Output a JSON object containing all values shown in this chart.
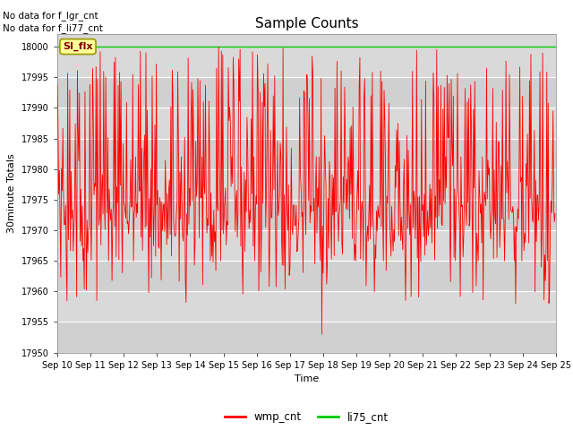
{
  "title": "Sample Counts",
  "xlabel": "Time",
  "ylabel": "30minute Totals",
  "ylim": [
    17950,
    18002
  ],
  "xlim": [
    0,
    720
  ],
  "x_tick_labels": [
    "Sep 10",
    "Sep 11",
    "Sep 12",
    "Sep 13",
    "Sep 14",
    "Sep 15",
    "Sep 16",
    "Sep 17",
    "Sep 18",
    "Sep 19",
    "Sep 20",
    "Sep 21",
    "Sep 22",
    "Sep 23",
    "Sep 24",
    "Sep 25"
  ],
  "x_tick_positions": [
    0,
    48,
    96,
    144,
    192,
    240,
    288,
    336,
    384,
    432,
    480,
    528,
    576,
    624,
    672,
    720
  ],
  "y_ticks": [
    17950,
    17955,
    17960,
    17965,
    17970,
    17975,
    17980,
    17985,
    17990,
    17995,
    18000
  ],
  "annotation_text1": "No data for f_lgr_cnt",
  "annotation_text2": "No data for f_li77_cnt",
  "si_flx_label": "SI_flx",
  "wmp_color": "#ff0000",
  "li75_color": "#00cc00",
  "bg_color": "#d9d9d9",
  "bg_color2": "#e8e8e8",
  "fig_bg": "#ffffff",
  "legend_wmp": "wmp_cnt",
  "legend_li75": "li75_cnt",
  "seed": 42,
  "n_points": 720,
  "base_mean": 17973,
  "base_std": 4.5,
  "title_fontsize": 11,
  "tick_fontsize": 7,
  "label_fontsize": 8
}
